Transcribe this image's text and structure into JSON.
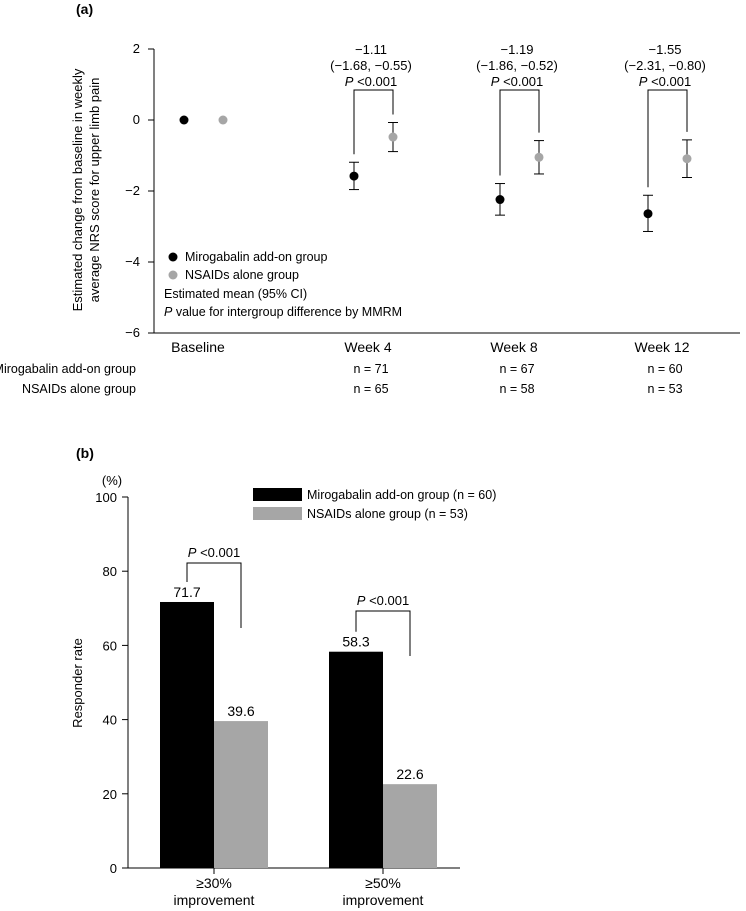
{
  "chart_data": [
    {
      "panel": "(a)",
      "type": "scatter",
      "ylabel_line1": "Estimated change from baseline in weekly",
      "ylabel_line2": "average NRS score for upper limb pain",
      "ylim": [
        -6,
        2
      ],
      "yticks": [
        "2",
        "0",
        "−2",
        "−4",
        "−6"
      ],
      "ytick_values": [
        2,
        0,
        -2,
        -4,
        -6
      ],
      "categories": [
        "Baseline",
        "Week 4",
        "Week 8",
        "Week 12"
      ],
      "series": [
        {
          "name": "Mirogabalin add-on group",
          "color": "#000000",
          "means": [
            0,
            -1.58,
            -2.24,
            -2.64
          ],
          "ci_low": [
            null,
            -1.96,
            -2.68,
            -3.14
          ],
          "ci_high": [
            null,
            -1.19,
            -1.79,
            -2.12
          ]
        },
        {
          "name": "NSAIDs alone group",
          "color": "#a6a6a6",
          "means": [
            0,
            -0.48,
            -1.05,
            -1.09
          ],
          "ci_low": [
            null,
            -0.89,
            -1.52,
            -1.62
          ],
          "ci_high": [
            null,
            -0.07,
            -0.58,
            -0.56
          ]
        }
      ],
      "differences": [
        {
          "week": "Week 4",
          "diff": "−1.11",
          "ci": "(−1.68, −0.55)",
          "p_label": "P",
          "p_value": "<0.001"
        },
        {
          "week": "Week 8",
          "diff": "−1.19",
          "ci": "(−1.86, −0.52)",
          "p_label": "P",
          "p_value": "<0.001"
        },
        {
          "week": "Week 12",
          "diff": "−1.55",
          "ci": "(−2.31, −0.80)",
          "p_label": "P",
          "p_value": "<0.001"
        }
      ],
      "legend": {
        "mirogabalin": "Mirogabalin add-on group",
        "nsaids": "NSAIDs alone group",
        "note1": "Estimated mean (95% CI)",
        "note2_p": "P",
        "note2_rest": " value for intergroup difference by MMRM"
      },
      "n_rows": [
        {
          "label": "Mirogabalin add-on group",
          "values": [
            "",
            "n = 71",
            "n = 67",
            "n = 60"
          ]
        },
        {
          "label": "NSAIDs alone group",
          "values": [
            "",
            "n = 65",
            "n = 58",
            "n = 53"
          ]
        }
      ]
    },
    {
      "panel": "(b)",
      "type": "bar",
      "unit": "(%)",
      "ylabel": "Responder rate",
      "ylim": [
        0,
        100
      ],
      "yticks": [
        "0",
        "20",
        "40",
        "60",
        "80",
        "100"
      ],
      "ytick_values": [
        0,
        20,
        40,
        60,
        80,
        100
      ],
      "categories": [
        {
          "line1": "≥30%",
          "line2": "improvement"
        },
        {
          "line1": "≥50%",
          "line2": "improvement"
        }
      ],
      "series": [
        {
          "name": "Mirogabalin add-on group (n = 60)",
          "color": "#000000",
          "values": [
            71.7,
            58.3
          ],
          "labels": [
            "71.7",
            "58.3"
          ]
        },
        {
          "name": "NSAIDs alone group (n = 53)",
          "color": "#a6a6a6",
          "values": [
            39.6,
            22.6
          ],
          "labels": [
            "39.6",
            "22.6"
          ]
        }
      ],
      "p_annotations": [
        {
          "p_label": "P",
          "p_value": " <0.001"
        },
        {
          "p_label": "P",
          "p_value": " <0.001"
        }
      ]
    }
  ]
}
